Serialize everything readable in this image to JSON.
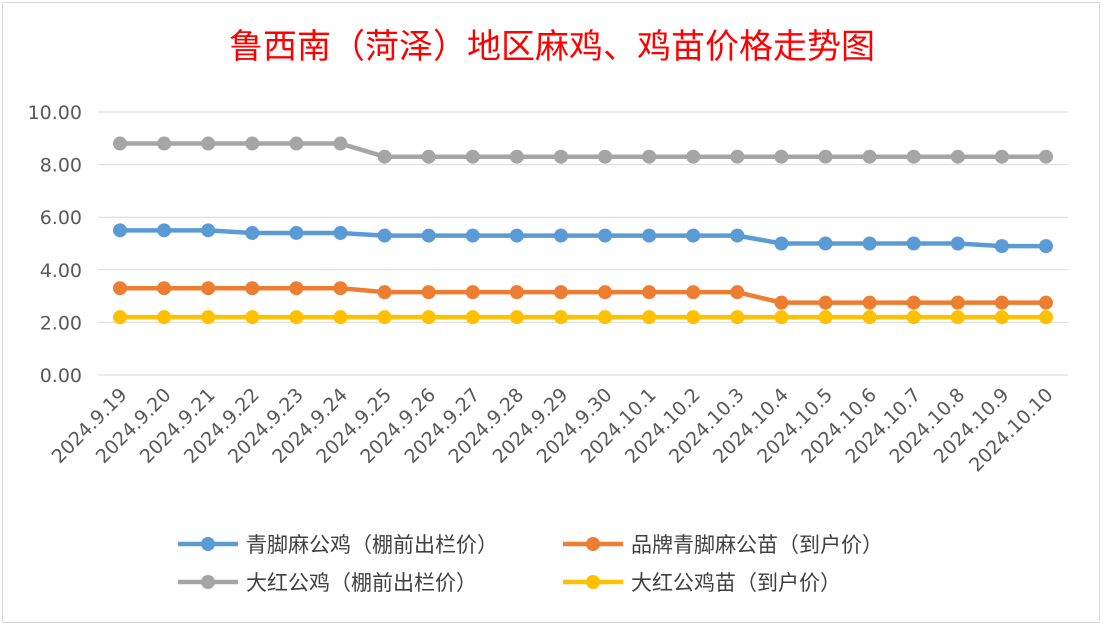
{
  "chart_data": {
    "type": "line",
    "title": "鲁西南（菏泽）地区麻鸡、鸡苗价格走势图",
    "xlabel": "",
    "ylabel": "",
    "ylim": [
      0,
      10
    ],
    "yticks": [
      "0.00",
      "2.00",
      "4.00",
      "6.00",
      "8.00",
      "10.00"
    ],
    "grid": true,
    "legend_position": "bottom",
    "categories": [
      "2024.9.19",
      "2024.9.20",
      "2024.9.21",
      "2024.9.22",
      "2024.9.23",
      "2024.9.24",
      "2024.9.25",
      "2024.9.26",
      "2024.9.27",
      "2024.9.28",
      "2024.9.29",
      "2024.9.30",
      "2024.10.1",
      "2024.10.2",
      "2024.10.3",
      "2024.10.4",
      "2024.10.5",
      "2024.10.6",
      "2024.10.7",
      "2024.10.8",
      "2024.10.9",
      "2024.10.10"
    ],
    "series": [
      {
        "name": "青脚麻公鸡（棚前出栏价）",
        "color": "#5b9bd5",
        "values": [
          5.5,
          5.5,
          5.5,
          5.4,
          5.4,
          5.4,
          5.3,
          5.3,
          5.3,
          5.3,
          5.3,
          5.3,
          5.3,
          5.3,
          5.3,
          5.0,
          5.0,
          5.0,
          5.0,
          5.0,
          4.9,
          4.9
        ]
      },
      {
        "name": "品牌青脚麻公苗（到户价）",
        "color": "#ed7d31",
        "values": [
          3.3,
          3.3,
          3.3,
          3.3,
          3.3,
          3.3,
          3.15,
          3.15,
          3.15,
          3.15,
          3.15,
          3.15,
          3.15,
          3.15,
          3.15,
          2.75,
          2.75,
          2.75,
          2.75,
          2.75,
          2.75,
          2.75
        ]
      },
      {
        "name": "大红公鸡（棚前出栏价）",
        "color": "#a5a5a5",
        "values": [
          8.8,
          8.8,
          8.8,
          8.8,
          8.8,
          8.8,
          8.3,
          8.3,
          8.3,
          8.3,
          8.3,
          8.3,
          8.3,
          8.3,
          8.3,
          8.3,
          8.3,
          8.3,
          8.3,
          8.3,
          8.3,
          8.3
        ]
      },
      {
        "name": "大红公鸡苗（到户价）",
        "color": "#ffc000",
        "values": [
          2.2,
          2.2,
          2.2,
          2.2,
          2.2,
          2.2,
          2.2,
          2.2,
          2.2,
          2.2,
          2.2,
          2.2,
          2.2,
          2.2,
          2.2,
          2.2,
          2.2,
          2.2,
          2.2,
          2.2,
          2.2,
          2.2
        ]
      }
    ],
    "draw_order": [
      2,
      0,
      1,
      3
    ]
  }
}
